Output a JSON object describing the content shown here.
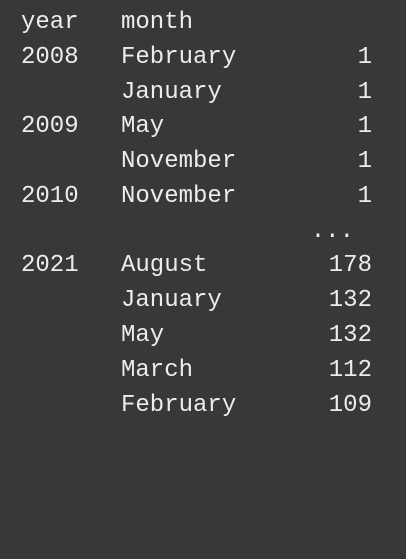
{
  "header": {
    "year": "year",
    "month": "month"
  },
  "rows": [
    {
      "year": "2008",
      "month": "February",
      "count": "1"
    },
    {
      "year": "",
      "month": "January",
      "count": "1"
    },
    {
      "year": "2009",
      "month": "May",
      "count": "1"
    },
    {
      "year": "",
      "month": "November",
      "count": "1"
    },
    {
      "year": "2010",
      "month": "November",
      "count": "1"
    },
    {
      "year": "2021",
      "month": "August",
      "count": "178"
    },
    {
      "year": "",
      "month": "January",
      "count": "132"
    },
    {
      "year": "",
      "month": "May",
      "count": "132"
    },
    {
      "year": "",
      "month": "March",
      "count": "112"
    },
    {
      "year": "",
      "month": "February",
      "count": "109"
    }
  ],
  "ellipsis": "...",
  "colors": {
    "background": "#383838",
    "text": "#ececec"
  }
}
